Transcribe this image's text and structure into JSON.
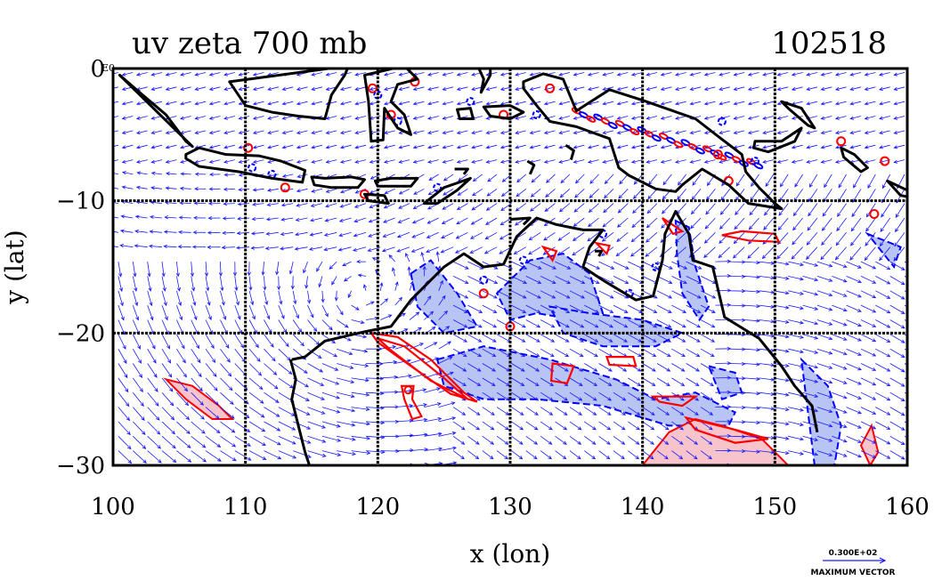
{
  "header": {
    "title": "uv zeta 700 mb",
    "date_code": "102518"
  },
  "map": {
    "lon_range": [
      100,
      160
    ],
    "lat_range": [
      -30,
      0
    ],
    "colors": {
      "vector": "#1a1aff",
      "positive_vorticity": "#ff0000",
      "negative_vorticity": "#0000ff",
      "negative_fill": "#b8c4f4",
      "positive_fill": "#f7c4cc",
      "coastline": "#000000"
    }
  },
  "chart_data": {
    "type": "map",
    "title": "uv zeta 700 mb",
    "xlabel": "x (lon)",
    "ylabel": "y (lat)",
    "xlim": [
      100,
      160
    ],
    "ylim": [
      -30,
      0
    ],
    "x_ticks": [
      "100",
      "110",
      "120",
      "130",
      "140",
      "150",
      "160"
    ],
    "y_ticks": [
      "0",
      "−10",
      "−20",
      "−30"
    ],
    "y_tick_suffix": "E0",
    "grid": true
  },
  "legend": {
    "ref_value": "0.300E+02",
    "ref_label": "MAXIMUM VECTOR"
  }
}
